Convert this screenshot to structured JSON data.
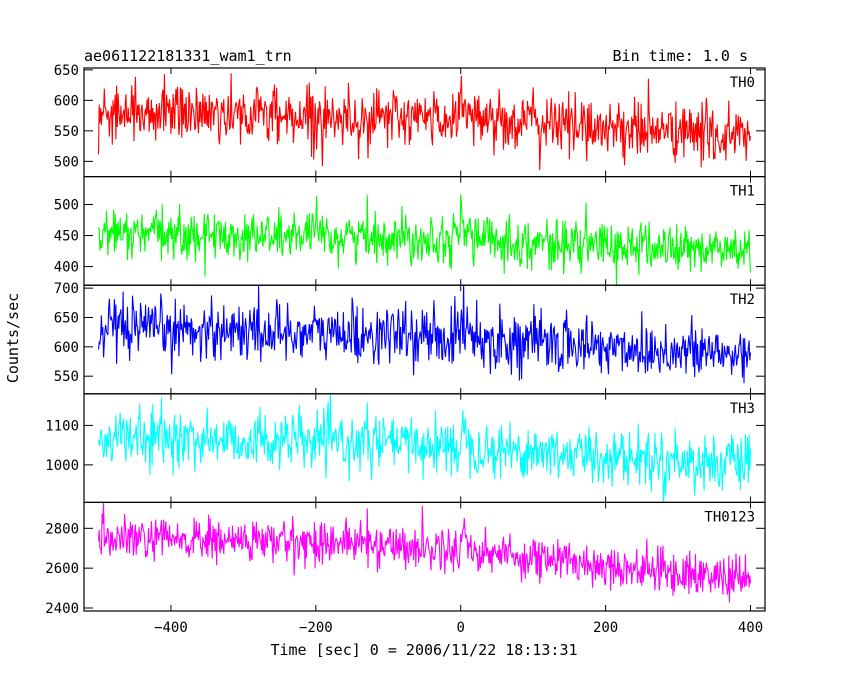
{
  "header": {
    "title": "ae061122181331_wam1_trn",
    "bin_time": "Bin time: 1.0 s"
  },
  "chart_data": {
    "type": "line",
    "xlabel": "Time [sec] 0 = 2006/11/22 18:13:31",
    "ylabel": "Counts/sec",
    "xlim": [
      -520,
      420
    ],
    "x_range": [
      -500,
      400
    ],
    "x_step": 1,
    "xticks": [
      -400,
      -200,
      0,
      200,
      400
    ],
    "panels": [
      {
        "name": "TH0",
        "color": "#ff0000",
        "ylim": [
          475,
          653
        ],
        "yticks": [
          500,
          550,
          600,
          650
        ],
        "trend": [
          [
            -500,
            585
          ],
          [
            -100,
            570
          ],
          [
            0,
            572
          ],
          [
            400,
            540
          ]
        ],
        "noise_sd": 24,
        "spike": [
          0,
          30,
          25
        ]
      },
      {
        "name": "TH1",
        "color": "#00ff00",
        "ylim": [
          370,
          545
        ],
        "yticks": [
          400,
          450,
          500
        ],
        "trend": [
          [
            -500,
            452
          ],
          [
            0,
            447
          ],
          [
            100,
            438
          ],
          [
            400,
            425
          ]
        ],
        "noise_sd": 20,
        "spike": [
          0,
          28,
          20
        ]
      },
      {
        "name": "TH2",
        "color": "#0000ff",
        "ylim": [
          520,
          705
        ],
        "yticks": [
          550,
          600,
          650,
          700
        ],
        "trend": [
          [
            -500,
            625
          ],
          [
            -350,
            630
          ],
          [
            0,
            615
          ],
          [
            400,
            585
          ]
        ],
        "noise_sd": 25,
        "spike": [
          0,
          35,
          25
        ]
      },
      {
        "name": "TH3",
        "color": "#00ffff",
        "ylim": [
          905,
          1180
        ],
        "yticks": [
          1000,
          1100
        ],
        "trend": [
          [
            -500,
            1070
          ],
          [
            -100,
            1055
          ],
          [
            0,
            1045
          ],
          [
            400,
            1000
          ]
        ],
        "noise_sd": 35,
        "spike": [
          0,
          40,
          25
        ]
      },
      {
        "name": "TH0123",
        "color": "#ff00ff",
        "ylim": [
          2385,
          2930
        ],
        "yticks": [
          2400,
          2600,
          2800
        ],
        "trend": [
          [
            -500,
            2745
          ],
          [
            -150,
            2730
          ],
          [
            0,
            2690
          ],
          [
            400,
            2540
          ]
        ],
        "noise_sd": 55,
        "spike": [
          0,
          90,
          20
        ]
      }
    ]
  }
}
